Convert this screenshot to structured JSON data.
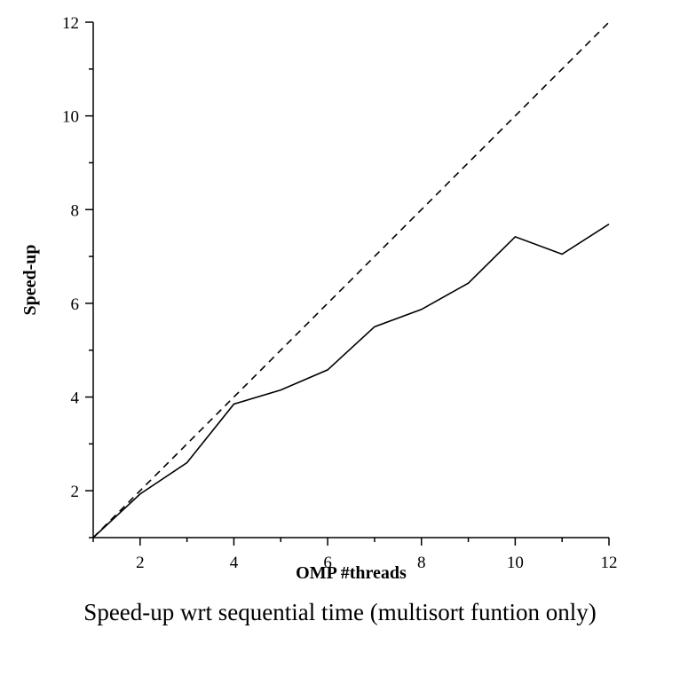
{
  "chart_data": {
    "type": "line",
    "caption": "Speed-up wrt sequential time (multisort funtion only)",
    "xlabel": "OMP #threads",
    "ylabel": "Speed-up",
    "xlim": [
      1,
      12
    ],
    "ylim": [
      1,
      12
    ],
    "x_ticks": [
      2,
      4,
      6,
      8,
      10,
      12
    ],
    "y_ticks": [
      2,
      4,
      6,
      8,
      10,
      12
    ],
    "grid": false,
    "series": [
      {
        "style": "solid",
        "x": [
          1,
          2,
          3,
          4,
          5,
          6,
          7,
          8,
          9,
          10,
          11,
          12
        ],
        "y": [
          1.0,
          1.93,
          2.6,
          3.85,
          4.15,
          4.58,
          5.5,
          5.87,
          6.43,
          7.42,
          7.05,
          7.69
        ]
      },
      {
        "style": "dashed",
        "x": [
          1,
          12
        ],
        "y": [
          1,
          12
        ]
      }
    ]
  }
}
